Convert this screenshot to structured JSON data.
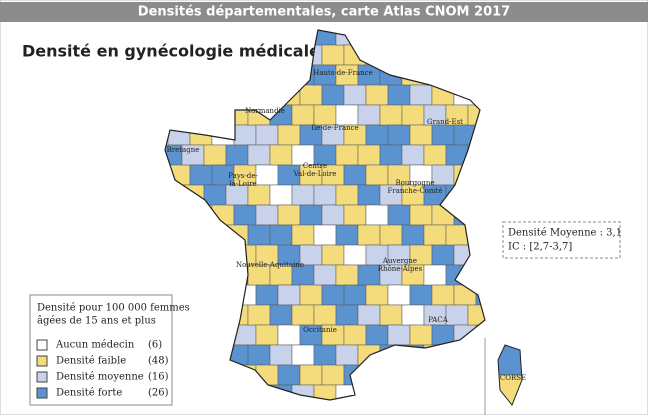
{
  "header": {
    "title": "Densités départementales, carte Atlas CNOM 2017"
  },
  "map": {
    "title": "Densité en gynécologie médicale",
    "regions": [
      "Hauts-de-France",
      "Normandie",
      "Ile-de-France",
      "Grand-Est",
      "Bretagne",
      "Centre",
      "Val-de-Loire",
      "Pays-de-",
      "la-Loire",
      "Bourgogne",
      "Franche-Comté",
      "Nouvelle-Aquitaine",
      "Auvergne",
      "Rhône-Alpes",
      "PACA",
      "Occitanie",
      "CORSE"
    ]
  },
  "stats": {
    "mean": "Densité Moyenne : 3,1",
    "ci": "IC : [2,7-3,7]"
  },
  "legend": {
    "title_lines": [
      "Densité pour 100 000 femmes",
      "âgées de 15 ans et plus"
    ],
    "items": [
      {
        "label": "Aucun médecin",
        "count": "(6)",
        "color": "#ffffff"
      },
      {
        "label": "Densité faible",
        "count": "(48)",
        "color": "#f4dc7c"
      },
      {
        "label": "Densité moyenne",
        "count": "(16)",
        "color": "#c8d2ea"
      },
      {
        "label": "Densité forte",
        "count": "(26)",
        "color": "#5b93d0"
      }
    ]
  }
}
